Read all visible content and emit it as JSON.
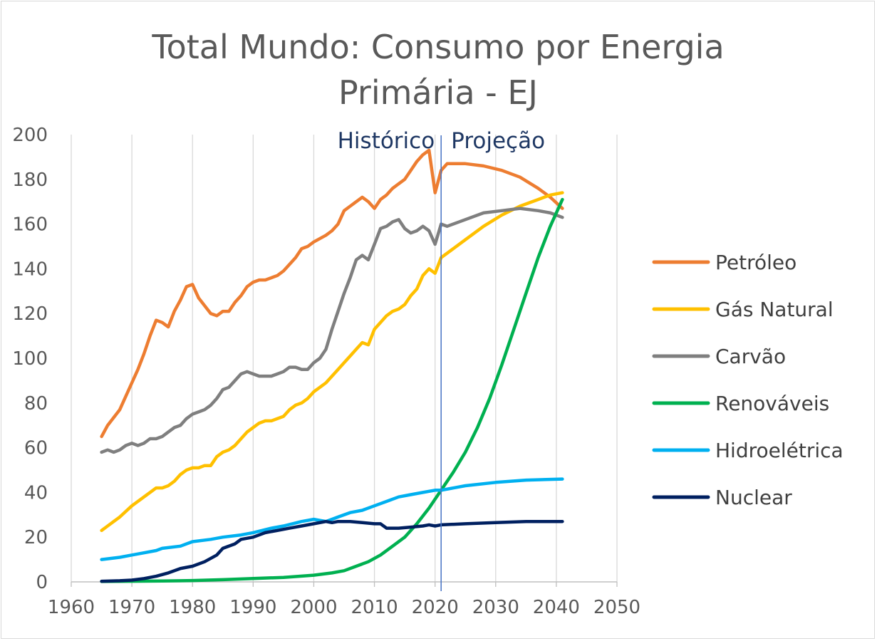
{
  "chart_data": {
    "type": "line",
    "title": [
      "Total Mundo: Consumo por Energia",
      "Primária - EJ"
    ],
    "xlim": [
      1960,
      2050
    ],
    "ylim": [
      0,
      200
    ],
    "x_ticks": [
      1960,
      1970,
      1980,
      1990,
      2000,
      2010,
      2020,
      2030,
      2040,
      2050
    ],
    "y_ticks": [
      0,
      20,
      40,
      60,
      80,
      100,
      120,
      140,
      160,
      180,
      200
    ],
    "grid": {
      "x": true,
      "y": false
    },
    "legend_position": "right",
    "divider": {
      "x": 2021,
      "labels": [
        "Histórico",
        "Projeção"
      ]
    },
    "series": [
      {
        "name": "Petróleo",
        "color": "#ed7d31",
        "points": [
          [
            1965,
            65
          ],
          [
            1966,
            70
          ],
          [
            1968,
            77
          ],
          [
            1970,
            89
          ],
          [
            1971,
            95
          ],
          [
            1972,
            102
          ],
          [
            1973,
            110
          ],
          [
            1974,
            117
          ],
          [
            1975,
            116
          ],
          [
            1976,
            114
          ],
          [
            1977,
            121
          ],
          [
            1978,
            126
          ],
          [
            1979,
            132
          ],
          [
            1980,
            133
          ],
          [
            1981,
            127
          ],
          [
            1983,
            120
          ],
          [
            1984,
            119
          ],
          [
            1985,
            121
          ],
          [
            1986,
            121
          ],
          [
            1987,
            125
          ],
          [
            1988,
            128
          ],
          [
            1989,
            132
          ],
          [
            1990,
            134
          ],
          [
            1991,
            135
          ],
          [
            1992,
            135
          ],
          [
            1993,
            136
          ],
          [
            1994,
            137
          ],
          [
            1995,
            139
          ],
          [
            1996,
            142
          ],
          [
            1997,
            145
          ],
          [
            1998,
            149
          ],
          [
            1999,
            150
          ],
          [
            2000,
            152
          ],
          [
            2002,
            155
          ],
          [
            2003,
            157
          ],
          [
            2004,
            160
          ],
          [
            2005,
            166
          ],
          [
            2006,
            168
          ],
          [
            2007,
            170
          ],
          [
            2008,
            172
          ],
          [
            2009,
            170
          ],
          [
            2010,
            167
          ],
          [
            2011,
            171
          ],
          [
            2012,
            173
          ],
          [
            2013,
            176
          ],
          [
            2014,
            178
          ],
          [
            2015,
            180
          ],
          [
            2016,
            184
          ],
          [
            2017,
            188
          ],
          [
            2018,
            191
          ],
          [
            2019,
            193
          ],
          [
            2020,
            174
          ],
          [
            2021,
            184
          ],
          [
            2022,
            187
          ],
          [
            2025,
            187
          ],
          [
            2028,
            186
          ],
          [
            2031,
            184
          ],
          [
            2034,
            181
          ],
          [
            2037,
            176
          ],
          [
            2039,
            172
          ],
          [
            2041,
            167
          ]
        ]
      },
      {
        "name": "Gás Natural",
        "color": "#ffc000",
        "points": [
          [
            1965,
            23
          ],
          [
            1966,
            25
          ],
          [
            1967,
            27
          ],
          [
            1968,
            29
          ],
          [
            1970,
            34
          ],
          [
            1972,
            38
          ],
          [
            1973,
            40
          ],
          [
            1974,
            42
          ],
          [
            1975,
            42
          ],
          [
            1976,
            43
          ],
          [
            1977,
            45
          ],
          [
            1978,
            48
          ],
          [
            1979,
            50
          ],
          [
            1980,
            51
          ],
          [
            1981,
            51
          ],
          [
            1982,
            52
          ],
          [
            1983,
            52
          ],
          [
            1984,
            56
          ],
          [
            1985,
            58
          ],
          [
            1986,
            59
          ],
          [
            1987,
            61
          ],
          [
            1988,
            64
          ],
          [
            1989,
            67
          ],
          [
            1990,
            69
          ],
          [
            1991,
            71
          ],
          [
            1992,
            72
          ],
          [
            1993,
            72
          ],
          [
            1994,
            73
          ],
          [
            1995,
            74
          ],
          [
            1996,
            77
          ],
          [
            1997,
            79
          ],
          [
            1998,
            80
          ],
          [
            1999,
            82
          ],
          [
            2000,
            85
          ],
          [
            2001,
            87
          ],
          [
            2002,
            89
          ],
          [
            2003,
            92
          ],
          [
            2004,
            95
          ],
          [
            2005,
            98
          ],
          [
            2006,
            101
          ],
          [
            2007,
            104
          ],
          [
            2008,
            107
          ],
          [
            2009,
            106
          ],
          [
            2010,
            113
          ],
          [
            2011,
            116
          ],
          [
            2012,
            119
          ],
          [
            2013,
            121
          ],
          [
            2014,
            122
          ],
          [
            2015,
            124
          ],
          [
            2016,
            128
          ],
          [
            2017,
            131
          ],
          [
            2018,
            137
          ],
          [
            2019,
            140
          ],
          [
            2020,
            138
          ],
          [
            2021,
            145
          ],
          [
            2022,
            147
          ],
          [
            2025,
            153
          ],
          [
            2028,
            159
          ],
          [
            2031,
            164
          ],
          [
            2034,
            168
          ],
          [
            2037,
            171
          ],
          [
            2039,
            173
          ],
          [
            2041,
            174
          ]
        ]
      },
      {
        "name": "Carvão",
        "color": "#7f7f7f",
        "points": [
          [
            1965,
            58
          ],
          [
            1966,
            59
          ],
          [
            1967,
            58
          ],
          [
            1968,
            59
          ],
          [
            1969,
            61
          ],
          [
            1970,
            62
          ],
          [
            1971,
            61
          ],
          [
            1972,
            62
          ],
          [
            1973,
            64
          ],
          [
            1974,
            64
          ],
          [
            1975,
            65
          ],
          [
            1976,
            67
          ],
          [
            1977,
            69
          ],
          [
            1978,
            70
          ],
          [
            1979,
            73
          ],
          [
            1980,
            75
          ],
          [
            1981,
            76
          ],
          [
            1982,
            77
          ],
          [
            1983,
            79
          ],
          [
            1984,
            82
          ],
          [
            1985,
            86
          ],
          [
            1986,
            87
          ],
          [
            1987,
            90
          ],
          [
            1988,
            93
          ],
          [
            1989,
            94
          ],
          [
            1990,
            93
          ],
          [
            1991,
            92
          ],
          [
            1992,
            92
          ],
          [
            1993,
            92
          ],
          [
            1994,
            93
          ],
          [
            1995,
            94
          ],
          [
            1996,
            96
          ],
          [
            1997,
            96
          ],
          [
            1998,
            95
          ],
          [
            1999,
            95
          ],
          [
            2000,
            98
          ],
          [
            2001,
            100
          ],
          [
            2002,
            104
          ],
          [
            2003,
            113
          ],
          [
            2004,
            121
          ],
          [
            2005,
            129
          ],
          [
            2006,
            136
          ],
          [
            2007,
            144
          ],
          [
            2008,
            146
          ],
          [
            2009,
            144
          ],
          [
            2010,
            151
          ],
          [
            2011,
            158
          ],
          [
            2012,
            159
          ],
          [
            2013,
            161
          ],
          [
            2014,
            162
          ],
          [
            2015,
            158
          ],
          [
            2016,
            156
          ],
          [
            2017,
            157
          ],
          [
            2018,
            159
          ],
          [
            2019,
            157
          ],
          [
            2020,
            151
          ],
          [
            2021,
            160
          ],
          [
            2022,
            159
          ],
          [
            2025,
            162
          ],
          [
            2028,
            165
          ],
          [
            2031,
            166
          ],
          [
            2034,
            167
          ],
          [
            2037,
            166
          ],
          [
            2039,
            165
          ],
          [
            2041,
            163
          ]
        ]
      },
      {
        "name": "Renováveis",
        "color": "#00b050",
        "points": [
          [
            1965,
            0.2
          ],
          [
            1970,
            0.3
          ],
          [
            1975,
            0.4
          ],
          [
            1980,
            0.6
          ],
          [
            1985,
            1
          ],
          [
            1990,
            1.5
          ],
          [
            1995,
            2
          ],
          [
            2000,
            3
          ],
          [
            2003,
            4
          ],
          [
            2005,
            5
          ],
          [
            2007,
            7
          ],
          [
            2009,
            9
          ],
          [
            2011,
            12
          ],
          [
            2013,
            16
          ],
          [
            2015,
            20
          ],
          [
            2017,
            26
          ],
          [
            2019,
            33
          ],
          [
            2021,
            41
          ],
          [
            2023,
            49
          ],
          [
            2025,
            58
          ],
          [
            2027,
            69
          ],
          [
            2029,
            82
          ],
          [
            2031,
            97
          ],
          [
            2033,
            113
          ],
          [
            2035,
            129
          ],
          [
            2037,
            145
          ],
          [
            2039,
            159
          ],
          [
            2041,
            171
          ]
        ]
      },
      {
        "name": "Hidroelétrica",
        "color": "#00b0f0",
        "points": [
          [
            1965,
            10
          ],
          [
            1968,
            11
          ],
          [
            1970,
            12
          ],
          [
            1972,
            13
          ],
          [
            1974,
            14
          ],
          [
            1975,
            15
          ],
          [
            1978,
            16
          ],
          [
            1980,
            18
          ],
          [
            1983,
            19
          ],
          [
            1985,
            20
          ],
          [
            1988,
            21
          ],
          [
            1990,
            22
          ],
          [
            1993,
            24
          ],
          [
            1995,
            25
          ],
          [
            1998,
            27
          ],
          [
            2000,
            28
          ],
          [
            2002,
            27
          ],
          [
            2004,
            29
          ],
          [
            2006,
            31
          ],
          [
            2008,
            32
          ],
          [
            2010,
            34
          ],
          [
            2012,
            36
          ],
          [
            2014,
            38
          ],
          [
            2016,
            39
          ],
          [
            2018,
            40
          ],
          [
            2020,
            41
          ],
          [
            2021,
            41
          ],
          [
            2025,
            43
          ],
          [
            2030,
            44.5
          ],
          [
            2035,
            45.5
          ],
          [
            2041,
            46
          ]
        ]
      },
      {
        "name": "Nuclear",
        "color": "#002060",
        "points": [
          [
            1965,
            0.3
          ],
          [
            1968,
            0.5
          ],
          [
            1970,
            0.8
          ],
          [
            1972,
            1.5
          ],
          [
            1974,
            2.5
          ],
          [
            1976,
            4
          ],
          [
            1978,
            6
          ],
          [
            1980,
            7
          ],
          [
            1982,
            9
          ],
          [
            1984,
            12
          ],
          [
            1985,
            15
          ],
          [
            1987,
            17
          ],
          [
            1988,
            19
          ],
          [
            1990,
            20
          ],
          [
            1992,
            22
          ],
          [
            1994,
            23
          ],
          [
            1996,
            24
          ],
          [
            1998,
            25
          ],
          [
            2000,
            26
          ],
          [
            2002,
            27
          ],
          [
            2003,
            26.5
          ],
          [
            2004,
            27
          ],
          [
            2006,
            27
          ],
          [
            2008,
            26.5
          ],
          [
            2010,
            26
          ],
          [
            2011,
            26
          ],
          [
            2012,
            24
          ],
          [
            2014,
            24
          ],
          [
            2016,
            24.5
          ],
          [
            2018,
            25
          ],
          [
            2019,
            25.5
          ],
          [
            2020,
            25
          ],
          [
            2021,
            25.5
          ],
          [
            2025,
            26
          ],
          [
            2030,
            26.5
          ],
          [
            2035,
            27
          ],
          [
            2041,
            27
          ]
        ]
      }
    ]
  }
}
